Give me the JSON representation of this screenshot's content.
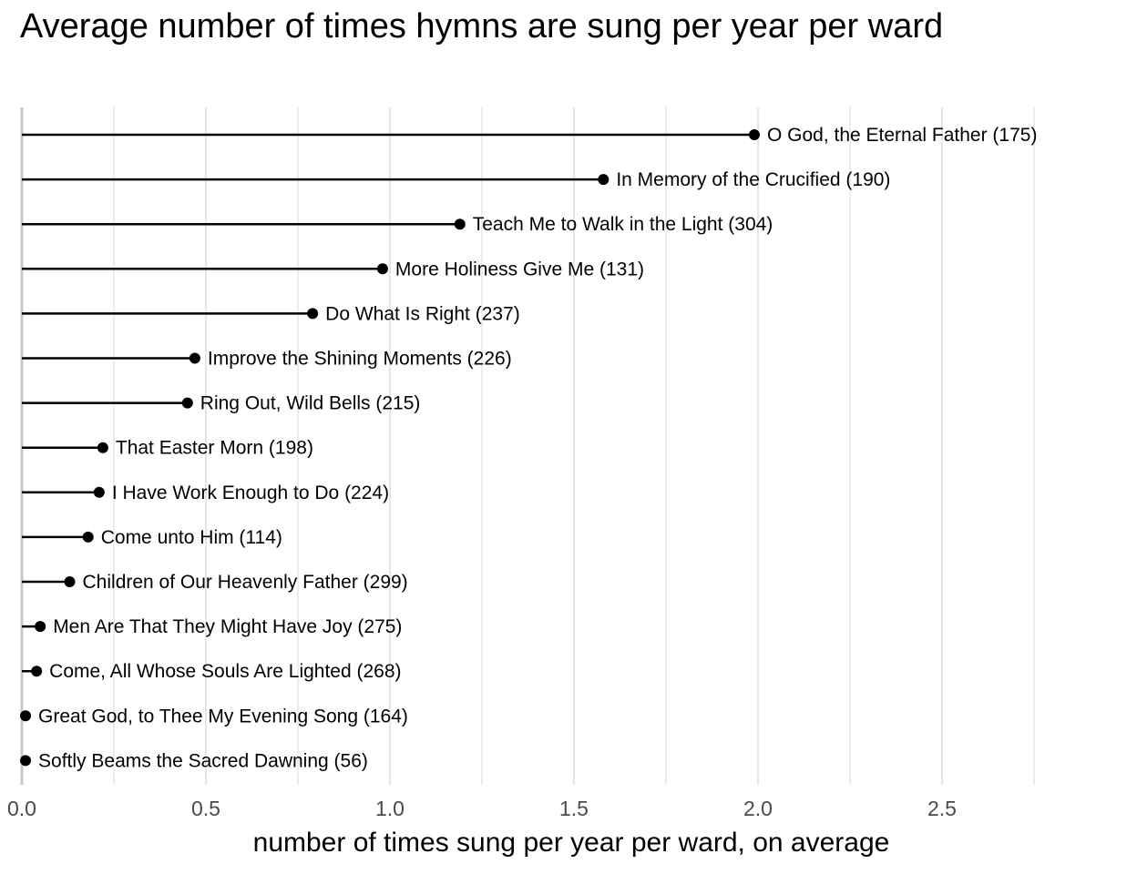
{
  "chart_data": {
    "type": "lollipop",
    "title": "Average number of times hymns are sung per year per ward",
    "xlabel": "number of times sung per year per ward, on average",
    "ylabel": "",
    "xlim": [
      0,
      2.78
    ],
    "x_ticks": [
      "0.0",
      "0.5",
      "1.0",
      "1.5",
      "2.0",
      "2.5"
    ],
    "grid": "vertical",
    "legend": "none",
    "points": [
      {
        "label": "O God, the Eternal Father (175)",
        "value": 1.99
      },
      {
        "label": "In Memory of the Crucified (190)",
        "value": 1.58
      },
      {
        "label": "Teach Me to Walk in the Light (304)",
        "value": 1.19
      },
      {
        "label": "More Holiness Give Me (131)",
        "value": 0.98
      },
      {
        "label": "Do What Is Right (237)",
        "value": 0.79
      },
      {
        "label": "Improve the Shining Moments (226)",
        "value": 0.47
      },
      {
        "label": "Ring Out, Wild Bells (215)",
        "value": 0.45
      },
      {
        "label": "That Easter Morn (198)",
        "value": 0.22
      },
      {
        "label": "I Have Work Enough to Do (224)",
        "value": 0.21
      },
      {
        "label": "Come unto Him (114)",
        "value": 0.18
      },
      {
        "label": "Children of Our Heavenly Father (299)",
        "value": 0.13
      },
      {
        "label": "Men Are That They Might Have Joy (275)",
        "value": 0.05
      },
      {
        "label": "Come, All Whose Souls Are Lighted (268)",
        "value": 0.04
      },
      {
        "label": "Great God, to Thee My Evening Song (164)",
        "value": 0.01
      },
      {
        "label": "Softly Beams the Sacred Dawning (56)",
        "value": 0.01
      }
    ],
    "colors": {
      "stem": "#000000",
      "point": "#000000",
      "grid": "#e6e6e6",
      "baseline": "#c8c8c8"
    }
  }
}
